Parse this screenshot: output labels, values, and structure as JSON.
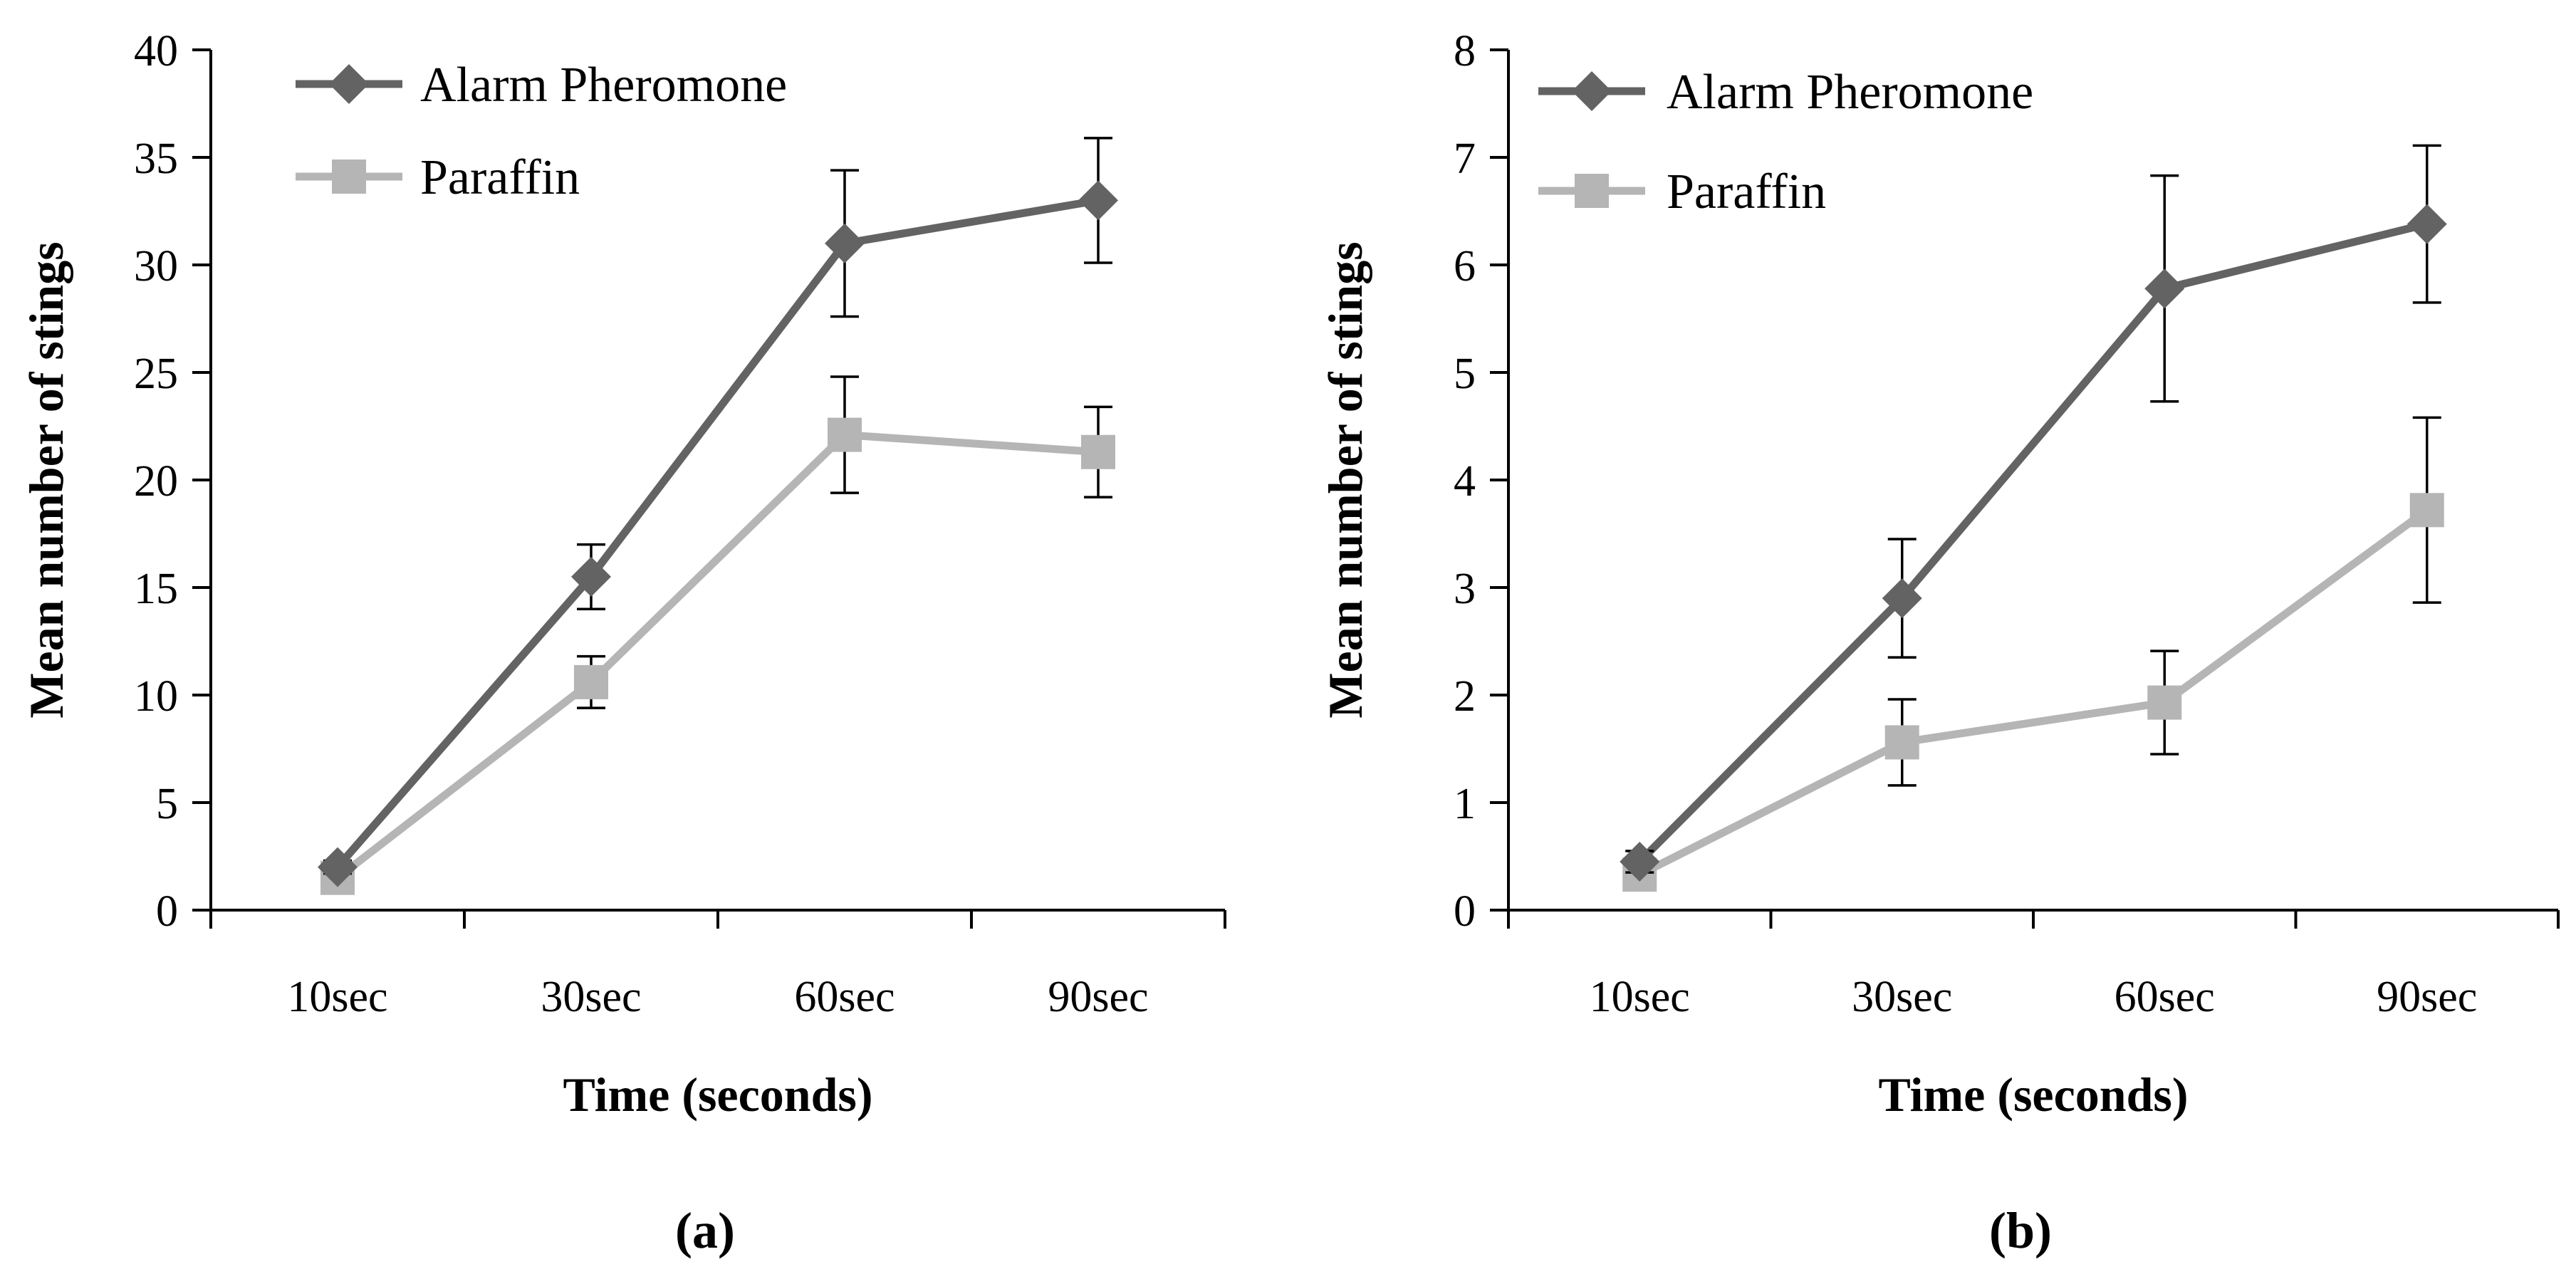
{
  "chart_data": [
    {
      "type": "line",
      "panel_label": "(a)",
      "categories": [
        "10sec",
        "30sec",
        "60sec",
        "90sec"
      ],
      "xlabel": "Time (seconds)",
      "ylabel": "Mean number of stings",
      "ylim": [
        0,
        40
      ],
      "yticks": [
        "0",
        "5",
        "10",
        "15",
        "20",
        "25",
        "30",
        "35",
        "40"
      ],
      "legend_position": "top-left",
      "grid": false,
      "series": [
        {
          "name": "Alarm Pheromone",
          "marker": "diamond",
          "color": "#636363",
          "values": [
            2.0,
            15.5,
            31.0,
            33.0
          ],
          "errors": [
            0.3,
            1.5,
            3.4,
            2.9
          ]
        },
        {
          "name": "Paraffin",
          "marker": "square",
          "color": "#b5b5b5",
          "values": [
            1.5,
            10.6,
            22.1,
            21.3
          ],
          "errors": [
            0.3,
            1.2,
            2.7,
            2.1
          ]
        }
      ]
    },
    {
      "type": "line",
      "panel_label": "(b)",
      "categories": [
        "10sec",
        "30sec",
        "60sec",
        "90sec"
      ],
      "xlabel": "Time (seconds)",
      "ylabel": "Mean number of stings",
      "ylim": [
        0,
        8
      ],
      "yticks": [
        "0",
        "1",
        "2",
        "3",
        "4",
        "5",
        "6",
        "7",
        "8"
      ],
      "legend_position": "top-left",
      "grid": false,
      "series": [
        {
          "name": "Alarm Pheromone",
          "marker": "diamond",
          "color": "#636363",
          "values": [
            0.45,
            2.9,
            5.78,
            6.38
          ],
          "errors": [
            0.1,
            0.55,
            1.05,
            0.73
          ]
        },
        {
          "name": "Paraffin",
          "marker": "square",
          "color": "#b5b5b5",
          "values": [
            0.33,
            1.56,
            1.93,
            3.72
          ],
          "errors": [
            0.1,
            0.4,
            0.48,
            0.86
          ]
        }
      ]
    }
  ]
}
